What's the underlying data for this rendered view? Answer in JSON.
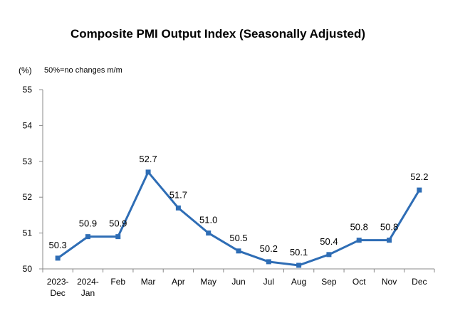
{
  "chart_data": {
    "type": "line",
    "title": "Composite PMI Output Index (Seasonally Adjusted)",
    "y_unit": "(%)",
    "note": "50%=no changes m/m",
    "ylim": [
      50,
      55
    ],
    "yticks": [
      "50",
      "51",
      "52",
      "53",
      "54",
      "55"
    ],
    "categories": [
      [
        "2023-",
        "Dec"
      ],
      [
        "2024-",
        "Jan"
      ],
      [
        "Feb"
      ],
      [
        "Mar"
      ],
      [
        "Apr"
      ],
      [
        "May"
      ],
      [
        "Jun"
      ],
      [
        "Jul"
      ],
      [
        "Aug"
      ],
      [
        "Sep"
      ],
      [
        "Oct"
      ],
      [
        "Nov"
      ],
      [
        "Dec"
      ]
    ],
    "values": [
      50.3,
      50.9,
      50.9,
      52.7,
      51.7,
      51.0,
      50.5,
      50.2,
      50.1,
      50.4,
      50.8,
      50.8,
      52.2
    ],
    "data_labels": [
      "50.3",
      "50.9",
      "50.9",
      "52.7",
      "51.7",
      "51.0",
      "50.5",
      "50.2",
      "50.1",
      "50.4",
      "50.8",
      "50.8",
      "52.2"
    ],
    "grid": false,
    "line_color": "#2E6DB5",
    "axis_color": "#888888"
  }
}
